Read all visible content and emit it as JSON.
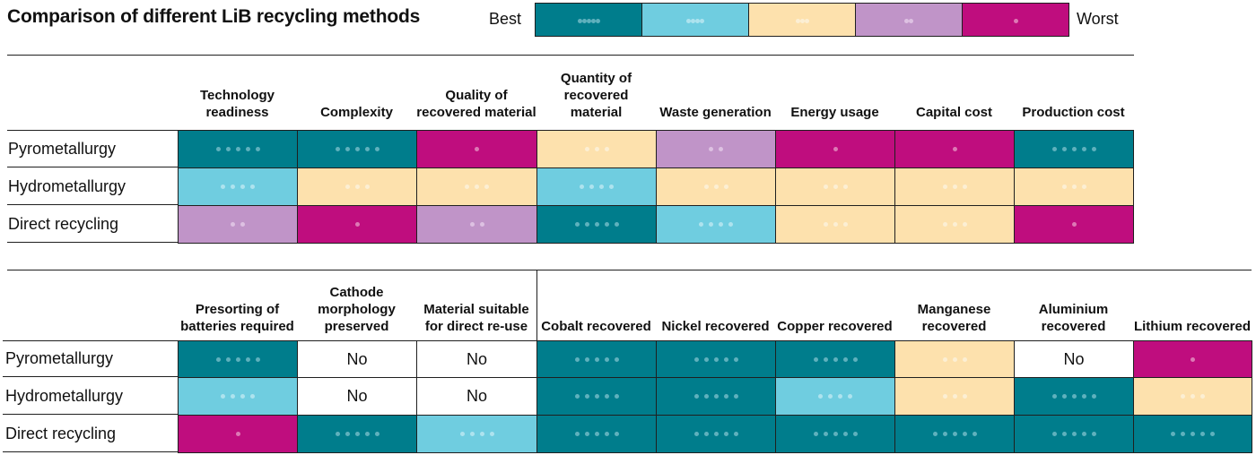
{
  "title": "Comparison of different LiB recycling methods",
  "legend": {
    "best_label": "Best",
    "worst_label": "Worst",
    "levels": [
      5,
      4,
      3,
      2,
      1
    ]
  },
  "colors": {
    "5": "#007d8c",
    "4": "#6fcde0",
    "3": "#fde1ad",
    "2": "#c094c8",
    "1": "#bf0d7e"
  },
  "dot_colors": {
    "5": "#5fb1bd",
    "4": "#aee3ee",
    "3": "#fcefd4",
    "2": "#ddc1e2",
    "1": "#dd79b5"
  },
  "top_table": {
    "columns": [
      "Technology readiness",
      "Complexity",
      "Quality of recovered material",
      "Quantity of recovered material",
      "Waste generation",
      "Energy usage",
      "Capital cost",
      "Production cost"
    ],
    "rows": [
      {
        "label": "Pyrometallurgy",
        "values": [
          5,
          5,
          1,
          3,
          2,
          1,
          1,
          5
        ]
      },
      {
        "label": "Hydrometallurgy",
        "values": [
          4,
          3,
          3,
          4,
          3,
          3,
          3,
          3
        ]
      },
      {
        "label": "Direct recycling",
        "values": [
          2,
          1,
          2,
          5,
          4,
          3,
          3,
          1
        ]
      }
    ]
  },
  "bottom_table": {
    "columns": [
      "Presorting of batteries required",
      "Cathode morphology preserved",
      "Material suitable for direct re-use",
      "Cobalt recovered",
      "Nickel recovered",
      "Copper recovered",
      "Manganese recovered",
      "Aluminium recovered",
      "Lithium recovered"
    ],
    "rows": [
      {
        "label": "Pyrometallurgy",
        "values": [
          5,
          "No",
          "No",
          5,
          5,
          5,
          3,
          "No",
          1
        ]
      },
      {
        "label": "Hydrometallurgy",
        "values": [
          4,
          "No",
          "No",
          5,
          5,
          4,
          3,
          5,
          3
        ]
      },
      {
        "label": "Direct recycling",
        "values": [
          1,
          5,
          4,
          5,
          5,
          5,
          5,
          5,
          5
        ]
      }
    ]
  }
}
